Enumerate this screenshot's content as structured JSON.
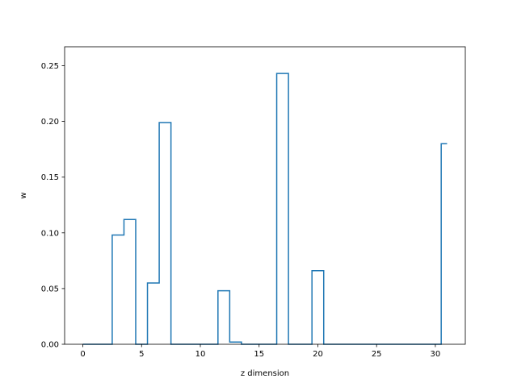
{
  "chart_data": {
    "type": "line",
    "drawstyle": "steps-mid",
    "title": "",
    "xlabel": "z dimension",
    "ylabel": "w",
    "xlim": [
      -1.55,
      32.55
    ],
    "ylim": [
      0,
      0.267
    ],
    "xticks": [
      0,
      5,
      10,
      15,
      20,
      25,
      30
    ],
    "yticks": [
      0.0,
      0.05,
      0.1,
      0.15,
      0.2,
      0.25
    ],
    "xtick_labels": [
      "0",
      "5",
      "10",
      "15",
      "20",
      "25",
      "30"
    ],
    "ytick_labels": [
      "0.00",
      "0.05",
      "0.10",
      "0.15",
      "0.20",
      "0.25"
    ],
    "grid": false,
    "legend": "none",
    "series": [
      {
        "color": "#1f77b4",
        "x": [
          0,
          1,
          2,
          3,
          4,
          5,
          6,
          7,
          8,
          9,
          10,
          11,
          12,
          13,
          14,
          15,
          16,
          17,
          18,
          19,
          20,
          21,
          22,
          23,
          24,
          25,
          26,
          27,
          28,
          29,
          30,
          31
        ],
        "y": [
          0,
          0,
          0,
          0.098,
          0.112,
          0,
          0.055,
          0.199,
          0,
          0,
          0,
          0,
          0.048,
          0.002,
          0,
          0,
          0,
          0.243,
          0,
          0,
          0.066,
          0,
          0,
          0,
          0,
          0,
          0,
          0,
          0,
          0,
          0,
          0.18
        ]
      }
    ]
  }
}
